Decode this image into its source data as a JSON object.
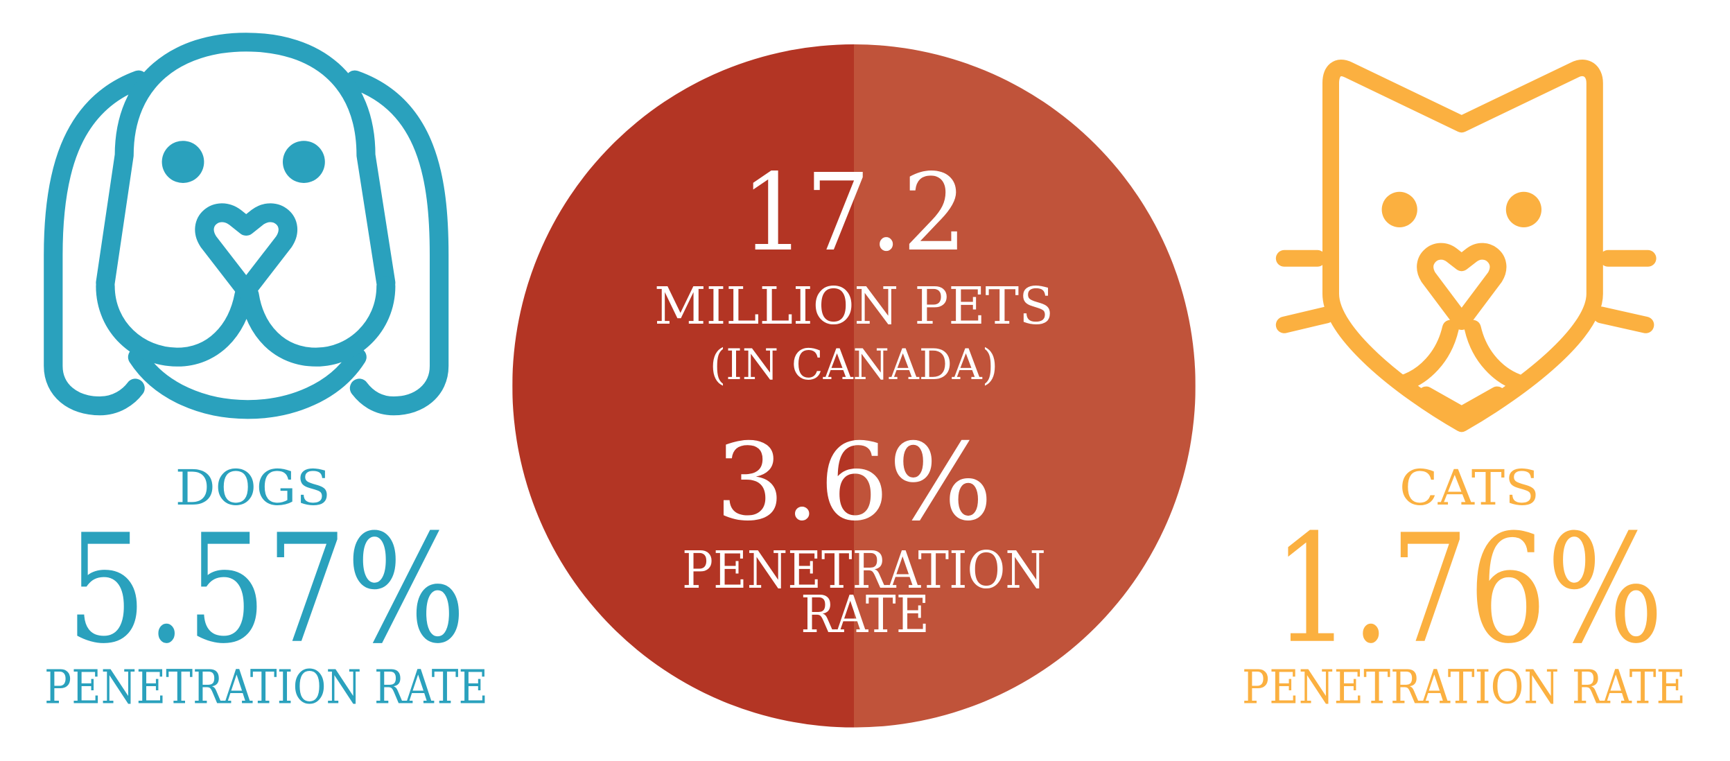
{
  "dogs": {
    "label": "DOGS",
    "rate": "5.57%",
    "caption": "PENETRATION RATE"
  },
  "total": {
    "count": "17.2",
    "unit": "MILLION PETS",
    "region": "(IN CANADA)",
    "rate": "3.6%",
    "caption_line_1": "PENETRATION",
    "caption_line_2": "RATE"
  },
  "cats": {
    "label": "CATS",
    "rate": "1.76%",
    "caption": "PENETRATION RATE"
  }
}
